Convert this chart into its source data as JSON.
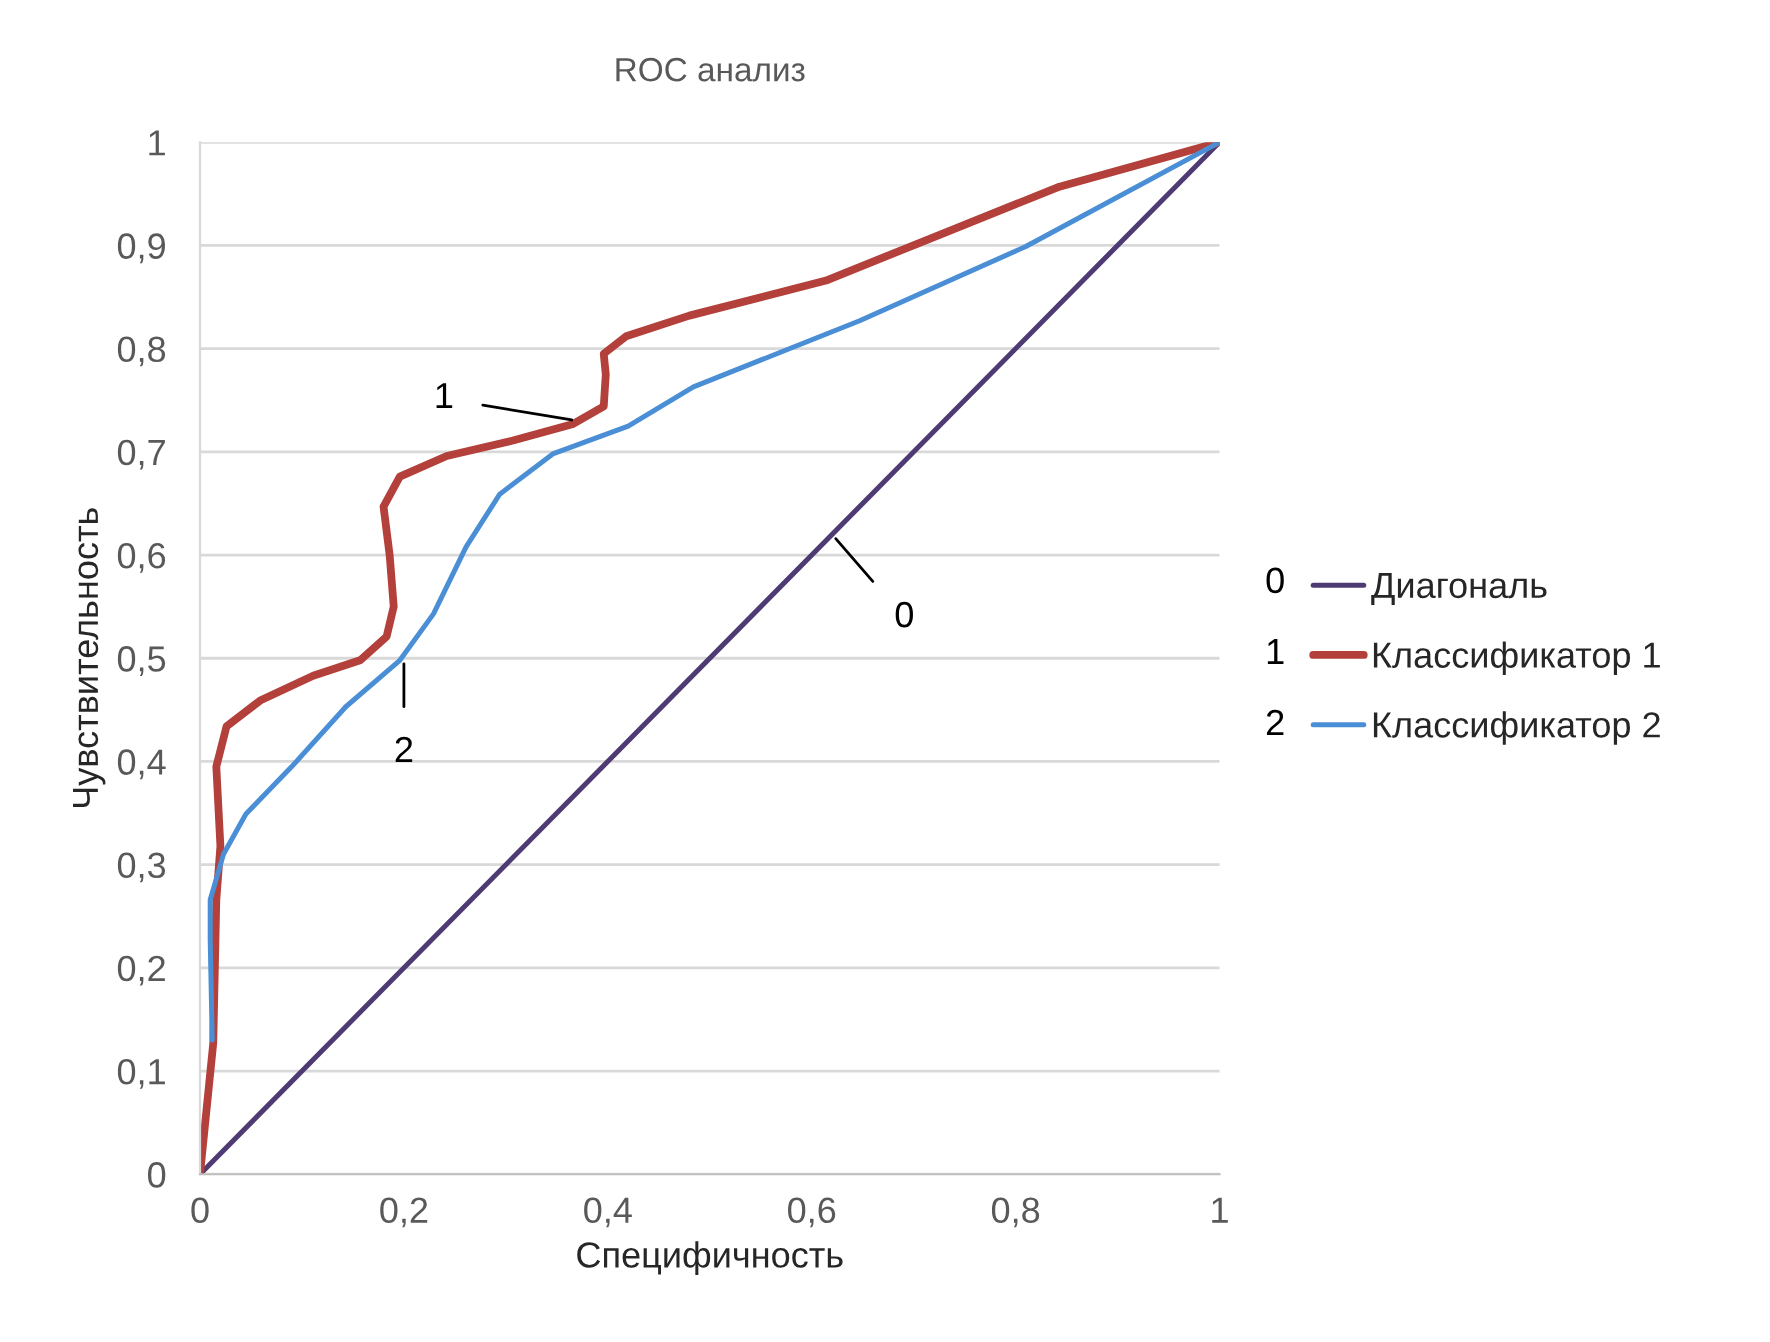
{
  "chart_data": {
    "type": "line",
    "title": "ROC анализ",
    "xlabel": "Специфичность",
    "ylabel": "Чувствительность",
    "xlim": [
      0,
      1
    ],
    "ylim": [
      0,
      1
    ],
    "xticks": [
      0,
      {
        "value": 0.2,
        "label": "0,2"
      },
      {
        "value": 0.4,
        "label": "0,4"
      },
      {
        "value": 0.6,
        "label": "0,6"
      },
      {
        "value": 0.8,
        "label": "0,8"
      },
      1
    ],
    "yticks": [
      0,
      {
        "value": 0.1,
        "label": "0,1"
      },
      {
        "value": 0.2,
        "label": "0,2"
      },
      {
        "value": 0.3,
        "label": "0,3"
      },
      {
        "value": 0.4,
        "label": "0,4"
      },
      {
        "value": 0.5,
        "label": "0,5"
      },
      {
        "value": 0.6,
        "label": "0,6"
      },
      {
        "value": 0.7,
        "label": "0,7"
      },
      {
        "value": 0.8,
        "label": "0,8"
      },
      {
        "value": 0.9,
        "label": "0,9"
      },
      1
    ],
    "grid": "y",
    "legend": "right",
    "marker": "none",
    "line_style": "solid",
    "series": [
      {
        "name": "Диагональ",
        "color": "#4e3b73",
        "x": [
          0,
          1
        ],
        "values": [
          0,
          1
        ]
      },
      {
        "name": "Классификатор 1",
        "color": "#b3403a",
        "x": [
          0,
          0.013,
          0.016,
          0.02,
          0.016,
          0.026,
          0.059,
          0.111,
          0.157,
          0.183,
          0.19,
          0.186,
          0.18,
          0.196,
          0.242,
          0.307,
          0.366,
          0.396,
          0.398,
          0.396,
          0.418,
          0.48,
          0.614,
          0.712,
          0.843,
          1
        ],
        "values": [
          0,
          0.127,
          0.266,
          0.318,
          0.395,
          0.434,
          0.459,
          0.483,
          0.498,
          0.521,
          0.55,
          0.6,
          0.647,
          0.676,
          0.696,
          0.711,
          0.727,
          0.744,
          0.775,
          0.795,
          0.812,
          0.832,
          0.866,
          0.905,
          0.957,
          1
        ]
      },
      {
        "name": "Классификатор 2",
        "color": "#4a8fd6",
        "x": [
          0.012,
          0.01,
          0.01,
          0.023,
          0.045,
          0.09,
          0.143,
          0.196,
          0.229,
          0.261,
          0.294,
          0.346,
          0.42,
          0.484,
          0.647,
          0.81,
          1
        ],
        "values": [
          0.13,
          0.227,
          0.266,
          0.31,
          0.349,
          0.395,
          0.453,
          0.498,
          0.543,
          0.608,
          0.659,
          0.698,
          0.725,
          0.763,
          0.827,
          0.899,
          1
        ]
      }
    ],
    "annotations": [
      {
        "text": "0",
        "x": 0.62,
        "y": 0.62
      },
      {
        "text": "1",
        "x": 0.37,
        "y": 0.73
      },
      {
        "text": "2",
        "x": 0.2,
        "y": 0.5
      },
      "0",
      "1",
      "2"
    ]
  }
}
